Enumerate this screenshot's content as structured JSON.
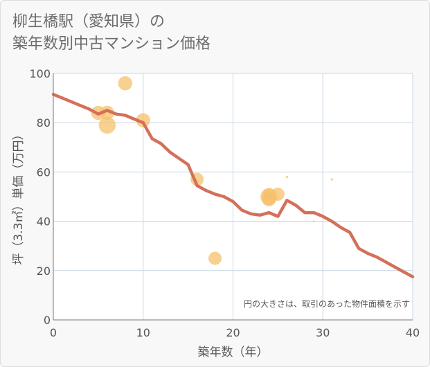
{
  "title": {
    "line1": "柳生橋駅（愛知県）の",
    "line2": "築年数別中古マンション価格"
  },
  "chart_data": {
    "type": "scatter",
    "xlabel": "築年数（年）",
    "ylabel": "坪（3.3㎡）単価（万円）",
    "xlim": [
      0,
      40
    ],
    "ylim": [
      0,
      100
    ],
    "x_ticks": [
      0,
      10,
      20,
      30,
      40
    ],
    "y_ticks": [
      0,
      20,
      40,
      60,
      80,
      100
    ],
    "grid": true,
    "annotation": "円の大きさは、取引のあった物件面積を示す",
    "colors": {
      "bubble": "#f5c06a",
      "line": "#d4705a",
      "grid": "#c9d6e3",
      "axis": "#777777"
    },
    "bubbles": [
      {
        "x": 5,
        "y": 84,
        "size": 3
      },
      {
        "x": 6,
        "y": 84,
        "size": 3
      },
      {
        "x": 6,
        "y": 79,
        "size": 3.6
      },
      {
        "x": 8,
        "y": 96,
        "size": 3
      },
      {
        "x": 10,
        "y": 81,
        "size": 3
      },
      {
        "x": 16,
        "y": 57,
        "size": 2.8
      },
      {
        "x": 18,
        "y": 25,
        "size": 2.8
      },
      {
        "x": 24,
        "y": 50,
        "size": 3.6
      },
      {
        "x": 24,
        "y": 49,
        "size": 3
      },
      {
        "x": 24,
        "y": 51,
        "size": 2.6
      },
      {
        "x": 25,
        "y": 51,
        "size": 2.8
      },
      {
        "x": 26,
        "y": 58,
        "size": 0.5
      },
      {
        "x": 29,
        "y": 40,
        "size": 0.4
      },
      {
        "x": 31,
        "y": 57,
        "size": 0.5
      }
    ],
    "trend": {
      "x": [
        0,
        1,
        2,
        3,
        4,
        5,
        6,
        7,
        8,
        9,
        10,
        11,
        12,
        13,
        14,
        15,
        16,
        17,
        18,
        19,
        20,
        21,
        22,
        23,
        24,
        25,
        26,
        27,
        28,
        29,
        30,
        31,
        32,
        33,
        34,
        35,
        36,
        37,
        38,
        39,
        40
      ],
      "y": [
        91.5,
        90,
        88.5,
        87,
        85.5,
        83.5,
        85,
        83.5,
        83,
        81.5,
        80,
        73.5,
        71.5,
        68,
        65.5,
        63,
        54.5,
        52.5,
        51,
        50,
        48,
        44.5,
        43,
        42.5,
        43.5,
        42,
        48.5,
        46.5,
        43.5,
        43.5,
        42,
        40,
        37.5,
        35.5,
        29,
        27,
        25.5,
        23.5,
        21.5,
        19.5,
        17.5
      ]
    }
  }
}
